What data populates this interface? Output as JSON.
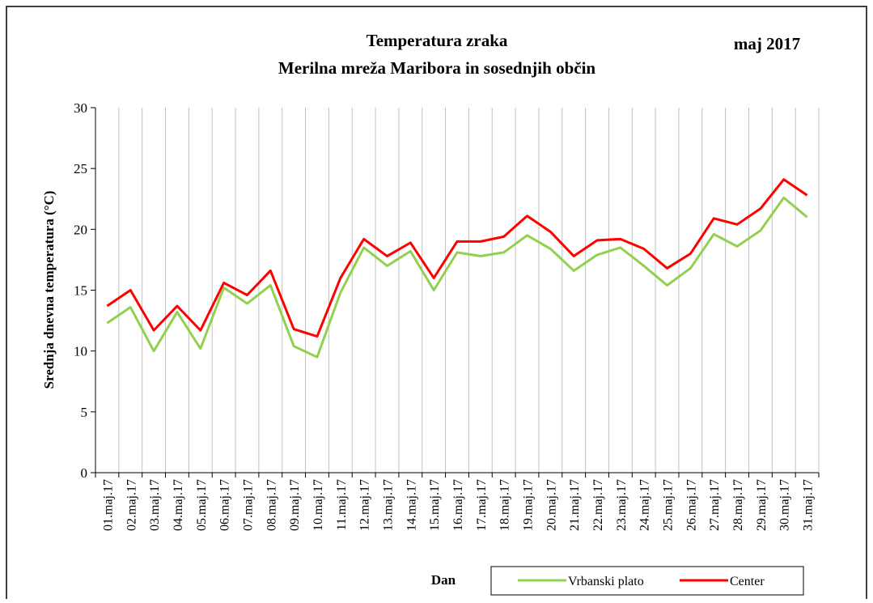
{
  "chart_data": {
    "type": "line",
    "title": "Temperatura zraka",
    "subtitle": "Merilna mreža Maribora in sosednjih občin",
    "annotation": "maj 2017",
    "y_label": "Srednja dnevna temperatura (°C)",
    "x_label": "Dan",
    "categories": [
      "01.maj.17",
      "02.maj.17",
      "03.maj.17",
      "04.maj.17",
      "05.maj.17",
      "06.maj.17",
      "07.maj.17",
      "08.maj.17",
      "09.maj.17",
      "10.maj.17",
      "11.maj.17",
      "12.maj.17",
      "13.maj.17",
      "14.maj.17",
      "15.maj.17",
      "16.maj.17",
      "17.maj.17",
      "18.maj.17",
      "19.maj.17",
      "20.maj.17",
      "21.maj.17",
      "22.maj.17",
      "23.maj.17",
      "24.maj.17",
      "25.maj.17",
      "26.maj.17",
      "27.maj.17",
      "28.maj.17",
      "29.maj.17",
      "30.maj.17",
      "31.maj.17"
    ],
    "series": [
      {
        "name": "Vrbanski plato",
        "color": "#92d050",
        "values": [
          12.3,
          13.6,
          10.0,
          13.2,
          10.2,
          15.2,
          13.9,
          15.4,
          10.4,
          9.5,
          14.8,
          18.5,
          17.0,
          18.2,
          15.0,
          18.1,
          17.8,
          18.1,
          19.5,
          18.4,
          16.6,
          17.9,
          18.5,
          17.0,
          15.4,
          16.8,
          19.6,
          18.6,
          19.9,
          22.6,
          21.0
        ]
      },
      {
        "name": "Center",
        "color": "#ff0000",
        "values": [
          13.7,
          15.0,
          11.7,
          13.7,
          11.7,
          15.6,
          14.6,
          16.6,
          11.8,
          11.2,
          16.0,
          19.2,
          17.8,
          18.9,
          16.0,
          19.0,
          19.0,
          19.4,
          21.1,
          19.8,
          17.8,
          19.1,
          19.2,
          18.4,
          16.8,
          18.0,
          20.9,
          20.4,
          21.7,
          24.1,
          22.8
        ]
      }
    ],
    "ylim": [
      0,
      30
    ],
    "yticks": [
      0,
      5,
      10,
      15,
      20,
      25,
      30
    ],
    "grid": true,
    "legend": "bottom"
  }
}
